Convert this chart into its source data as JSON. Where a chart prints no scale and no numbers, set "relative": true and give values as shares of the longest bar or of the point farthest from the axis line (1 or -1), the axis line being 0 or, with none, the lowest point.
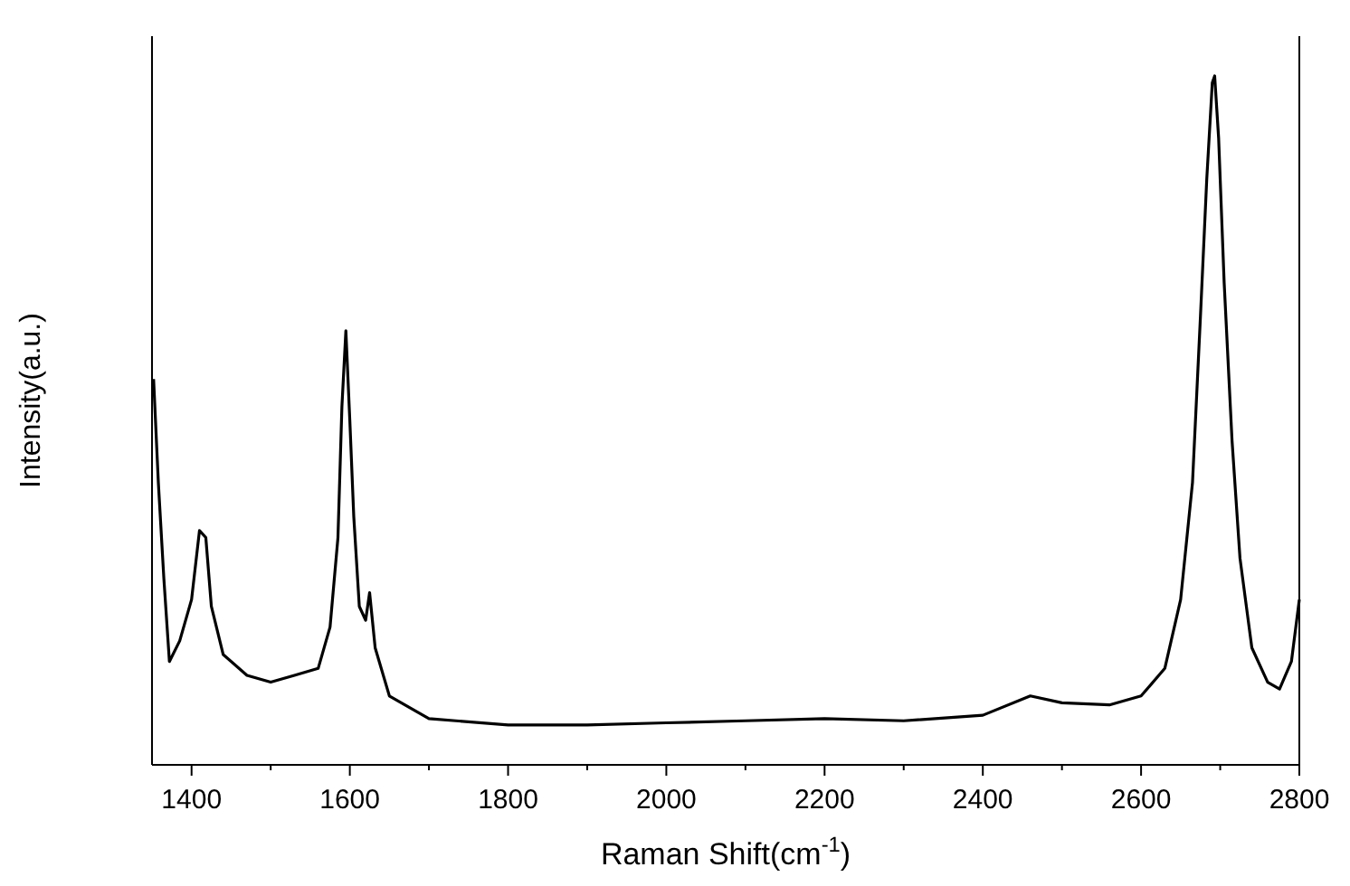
{
  "chart_data": {
    "type": "line",
    "xlabel": "Raman Shift(cm$^{-1}$)",
    "ylabel": "Intensity(a.u.)",
    "relative": true,
    "xlim": [
      1350,
      2800
    ],
    "xticks": [
      1400,
      1600,
      1800,
      2000,
      2200,
      2400,
      2600,
      2800
    ],
    "grid": false,
    "marker": "none",
    "line_style": "solid",
    "series": [
      {
        "color": "#000000",
        "x": [
          1352,
          1358,
          1365,
          1372,
          1385,
          1400,
          1410,
          1418,
          1425,
          1440,
          1470,
          1500,
          1530,
          1560,
          1575,
          1585,
          1590,
          1595,
          1600,
          1605,
          1612,
          1620,
          1625,
          1632,
          1650,
          1700,
          1800,
          1900,
          2000,
          2100,
          2200,
          2300,
          2400,
          2460,
          2500,
          2560,
          2600,
          2630,
          2650,
          2665,
          2675,
          2683,
          2690,
          2693,
          2698,
          2705,
          2715,
          2725,
          2740,
          2760,
          2775,
          2790,
          2800
        ],
        "values": [
          0.56,
          0.41,
          0.27,
          0.15,
          0.18,
          0.24,
          0.34,
          0.33,
          0.23,
          0.16,
          0.13,
          0.12,
          0.13,
          0.14,
          0.2,
          0.33,
          0.52,
          0.63,
          0.5,
          0.36,
          0.23,
          0.21,
          0.25,
          0.17,
          0.1,
          0.067,
          0.058,
          0.058,
          0.061,
          0.064,
          0.067,
          0.064,
          0.072,
          0.1,
          0.09,
          0.087,
          0.1,
          0.14,
          0.24,
          0.41,
          0.65,
          0.85,
          0.99,
          1,
          0.91,
          0.7,
          0.47,
          0.3,
          0.17,
          0.12,
          0.11,
          0.15,
          0.24
        ]
      }
    ]
  }
}
